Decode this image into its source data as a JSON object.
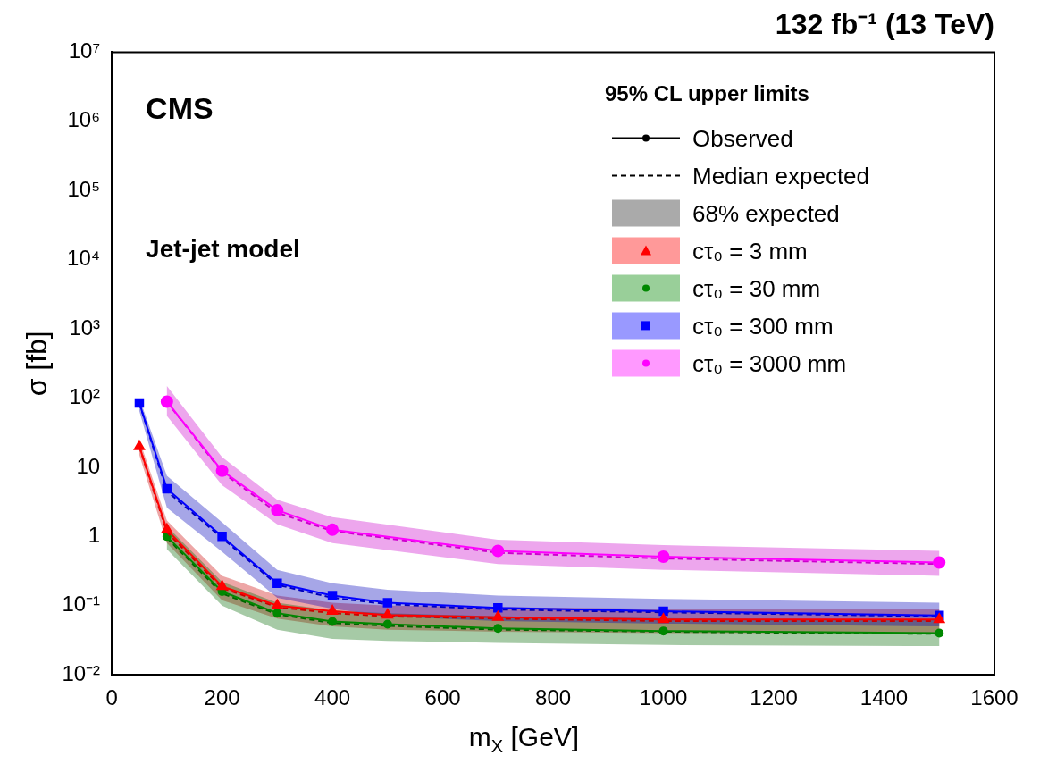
{
  "chart_data": {
    "type": "line",
    "title": "132 fb⁻¹ (13 TeV)",
    "xlabel": "m$_{X}$ [GeV]",
    "ylabel": "σ [fb]",
    "legend_title": "95% CL upper limits",
    "annotations": [
      "CMS",
      "Jet-jet model"
    ],
    "log": "y",
    "grid": false,
    "legend": "top right",
    "xlim": [
      0,
      1600
    ],
    "xticks": [
      0,
      200,
      400,
      600,
      800,
      1000,
      1200,
      1400,
      1600
    ],
    "ylim": [
      0.01,
      10000000
    ],
    "yticks": [
      {
        "value": 0.01,
        "label": "10⁻²"
      },
      {
        "value": 0.1,
        "label": "10⁻¹"
      },
      1,
      10,
      {
        "value": 100,
        "label": "10²"
      },
      {
        "value": 1000,
        "label": "10³"
      },
      {
        "value": 10000,
        "label": "10⁴"
      },
      {
        "value": 100000,
        "label": "10⁵"
      },
      {
        "value": 1000000,
        "label": "10⁶"
      },
      {
        "value": 10000000,
        "label": "10⁷"
      }
    ],
    "series": [
      {
        "name": "Observed",
        "color": "#000000",
        "marker": "circle",
        "line_style": "solid"
      },
      {
        "name": "Median expected",
        "color": "#000000",
        "marker": "none",
        "line_style": "dashed"
      },
      {
        "name": "68% expected",
        "type": "area",
        "color": "#aaaaaa"
      },
      {
        "name": "cτ₀ = 3 mm",
        "color": "#ff0000",
        "marker": "triangle",
        "line_style": "solid",
        "x": [
          50,
          100,
          200,
          300,
          400,
          500,
          700,
          1000,
          1500
        ],
        "values": [
          20,
          1.25,
          0.19,
          0.1,
          0.083,
          0.073,
          0.068,
          0.063,
          0.063
        ]
      },
      {
        "color": "#cc0000",
        "marker": "none",
        "line_style": "dashed",
        "x": [
          50,
          100,
          200,
          300,
          400,
          500,
          700,
          1000,
          1500
        ],
        "values": [
          20,
          1.15,
          0.18,
          0.095,
          0.078,
          0.07,
          0.065,
          0.06,
          0.06
        ],
        "lower": [
          15,
          0.8,
          0.12,
          0.065,
          0.05,
          0.045,
          0.042,
          0.04,
          0.04
        ],
        "upper": [
          25,
          1.7,
          0.27,
          0.14,
          0.11,
          0.1,
          0.095,
          0.09,
          0.09
        ]
      },
      {
        "name": "cτ₀ = 30 mm",
        "color": "#008800",
        "marker": "circle",
        "line_style": "solid",
        "x": [
          100,
          200,
          300,
          400,
          500,
          700,
          1000,
          1500
        ],
        "values": [
          1.0,
          0.16,
          0.078,
          0.059,
          0.054,
          0.047,
          0.043,
          0.04
        ]
      },
      {
        "color": "#006600",
        "marker": "none",
        "line_style": "dashed",
        "x": [
          100,
          200,
          300,
          400,
          500,
          700,
          1000,
          1500
        ],
        "values": [
          0.95,
          0.15,
          0.075,
          0.056,
          0.051,
          0.045,
          0.042,
          0.039
        ],
        "lower": [
          0.65,
          0.1,
          0.045,
          0.033,
          0.031,
          0.029,
          0.027,
          0.026
        ],
        "upper": [
          1.4,
          0.22,
          0.11,
          0.085,
          0.078,
          0.07,
          0.066,
          0.062
        ]
      },
      {
        "name": "cτ₀ = 300 mm",
        "color": "#0000ff",
        "marker": "square",
        "line_style": "solid",
        "x": [
          50,
          100,
          200,
          300,
          400,
          500,
          700,
          1000,
          1500
        ],
        "values": [
          85,
          4.9,
          1.0,
          0.21,
          0.14,
          0.11,
          0.093,
          0.083,
          0.072
        ]
      },
      {
        "color": "#0000bb",
        "marker": "none",
        "line_style": "dashed",
        "x": [
          50,
          100,
          200,
          300,
          400,
          500,
          700,
          1000,
          1500
        ],
        "values": [
          85,
          4.5,
          0.95,
          0.2,
          0.13,
          0.105,
          0.088,
          0.08,
          0.07
        ],
        "lower": [
          65,
          2.6,
          0.6,
          0.13,
          0.09,
          0.07,
          0.06,
          0.055,
          0.05
        ],
        "upper": [
          100,
          7.5,
          1.6,
          0.33,
          0.21,
          0.17,
          0.14,
          0.125,
          0.11
        ]
      },
      {
        "name": "cτ₀ = 3000 mm",
        "color": "#ff00ff",
        "marker": "circle",
        "line_style": "solid",
        "x": [
          100,
          200,
          300,
          400,
          700,
          1000,
          1500
        ],
        "values": [
          89,
          8.9,
          2.4,
          1.25,
          0.62,
          0.51,
          0.42
        ]
      },
      {
        "color": "#cc00cc",
        "marker": "none",
        "line_style": "dashed",
        "x": [
          100,
          200,
          300,
          400,
          700,
          1000,
          1500
        ],
        "values": [
          88,
          8.5,
          2.2,
          1.2,
          0.58,
          0.48,
          0.4
        ],
        "lower": [
          55,
          5.5,
          1.5,
          0.8,
          0.4,
          0.33,
          0.27
        ],
        "upper": [
          150,
          14,
          3.4,
          1.9,
          0.9,
          0.75,
          0.62
        ]
      }
    ]
  }
}
